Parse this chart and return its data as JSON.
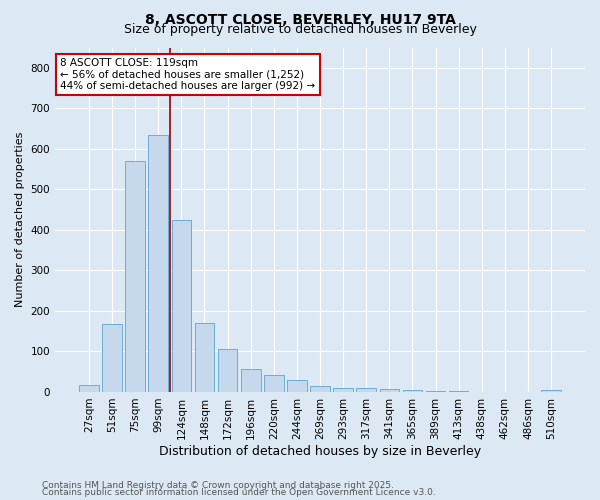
{
  "title": "8, ASCOTT CLOSE, BEVERLEY, HU17 9TA",
  "subtitle": "Size of property relative to detached houses in Beverley",
  "xlabel": "Distribution of detached houses by size in Beverley",
  "ylabel": "Number of detached properties",
  "categories": [
    "27sqm",
    "51sqm",
    "75sqm",
    "99sqm",
    "124sqm",
    "148sqm",
    "172sqm",
    "196sqm",
    "220sqm",
    "244sqm",
    "269sqm",
    "293sqm",
    "317sqm",
    "341sqm",
    "365sqm",
    "389sqm",
    "413sqm",
    "438sqm",
    "462sqm",
    "486sqm",
    "510sqm"
  ],
  "values": [
    18,
    168,
    570,
    635,
    425,
    170,
    105,
    57,
    42,
    30,
    15,
    10,
    9,
    8,
    6,
    3,
    2,
    1,
    0,
    0,
    5
  ],
  "bar_color": "#c6d9ec",
  "bar_edge_color": "#6aaed6",
  "vline_color": "#990000",
  "vline_x_index": 4,
  "annotation_text": "8 ASCOTT CLOSE: 119sqm\n← 56% of detached houses are smaller (1,252)\n44% of semi-detached houses are larger (992) →",
  "annotation_box_facecolor": "#ffffff",
  "annotation_box_edgecolor": "#cc0000",
  "ylim": [
    0,
    850
  ],
  "yticks": [
    0,
    100,
    200,
    300,
    400,
    500,
    600,
    700,
    800
  ],
  "footnote1": "Contains HM Land Registry data © Crown copyright and database right 2025.",
  "footnote2": "Contains public sector information licensed under the Open Government Licence v3.0.",
  "background_color": "#dce9f5",
  "plot_background_color": "#dce9f5",
  "grid_color": "#ffffff",
  "title_fontsize": 10,
  "subtitle_fontsize": 9,
  "xlabel_fontsize": 9,
  "ylabel_fontsize": 8,
  "tick_fontsize": 7.5,
  "annotation_fontsize": 7.5,
  "footnote_fontsize": 6.5
}
